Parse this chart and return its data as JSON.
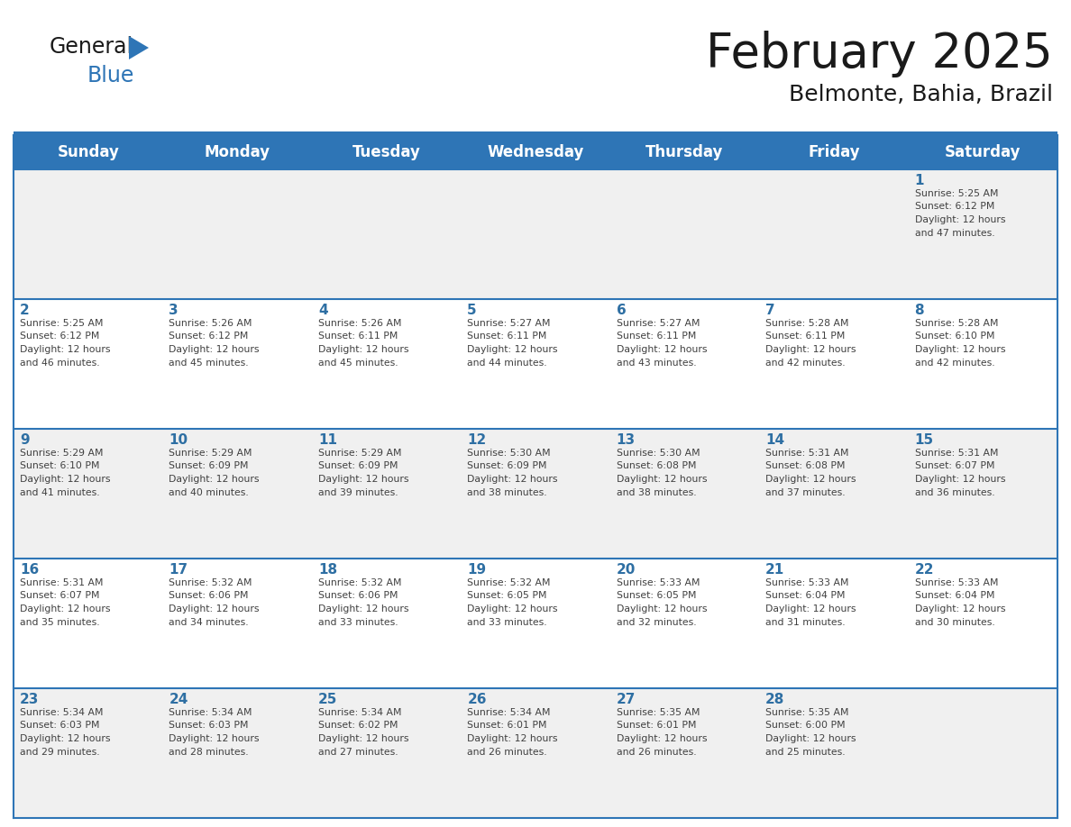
{
  "title": "February 2025",
  "subtitle": "Belmonte, Bahia, Brazil",
  "header_bg_color": "#2E75B6",
  "header_text_color": "#FFFFFF",
  "weekdays": [
    "Sunday",
    "Monday",
    "Tuesday",
    "Wednesday",
    "Thursday",
    "Friday",
    "Saturday"
  ],
  "bg_color": "#FFFFFF",
  "cell_alt_bg": "#F0F0F0",
  "separator_color": "#2E75B6",
  "day_number_color": "#2E6FA3",
  "info_text_color": "#404040",
  "title_color": "#1a1a1a",
  "calendar_data": [
    [
      {
        "day": null,
        "sunrise": null,
        "sunset": null,
        "daylight": null
      },
      {
        "day": null,
        "sunrise": null,
        "sunset": null,
        "daylight": null
      },
      {
        "day": null,
        "sunrise": null,
        "sunset": null,
        "daylight": null
      },
      {
        "day": null,
        "sunrise": null,
        "sunset": null,
        "daylight": null
      },
      {
        "day": null,
        "sunrise": null,
        "sunset": null,
        "daylight": null
      },
      {
        "day": null,
        "sunrise": null,
        "sunset": null,
        "daylight": null
      },
      {
        "day": 1,
        "sunrise": "5:25 AM",
        "sunset": "6:12 PM",
        "daylight": "12 hours and 47 minutes."
      }
    ],
    [
      {
        "day": 2,
        "sunrise": "5:25 AM",
        "sunset": "6:12 PM",
        "daylight": "12 hours and 46 minutes."
      },
      {
        "day": 3,
        "sunrise": "5:26 AM",
        "sunset": "6:12 PM",
        "daylight": "12 hours and 45 minutes."
      },
      {
        "day": 4,
        "sunrise": "5:26 AM",
        "sunset": "6:11 PM",
        "daylight": "12 hours and 45 minutes."
      },
      {
        "day": 5,
        "sunrise": "5:27 AM",
        "sunset": "6:11 PM",
        "daylight": "12 hours and 44 minutes."
      },
      {
        "day": 6,
        "sunrise": "5:27 AM",
        "sunset": "6:11 PM",
        "daylight": "12 hours and 43 minutes."
      },
      {
        "day": 7,
        "sunrise": "5:28 AM",
        "sunset": "6:11 PM",
        "daylight": "12 hours and 42 minutes."
      },
      {
        "day": 8,
        "sunrise": "5:28 AM",
        "sunset": "6:10 PM",
        "daylight": "12 hours and 42 minutes."
      }
    ],
    [
      {
        "day": 9,
        "sunrise": "5:29 AM",
        "sunset": "6:10 PM",
        "daylight": "12 hours and 41 minutes."
      },
      {
        "day": 10,
        "sunrise": "5:29 AM",
        "sunset": "6:09 PM",
        "daylight": "12 hours and 40 minutes."
      },
      {
        "day": 11,
        "sunrise": "5:29 AM",
        "sunset": "6:09 PM",
        "daylight": "12 hours and 39 minutes."
      },
      {
        "day": 12,
        "sunrise": "5:30 AM",
        "sunset": "6:09 PM",
        "daylight": "12 hours and 38 minutes."
      },
      {
        "day": 13,
        "sunrise": "5:30 AM",
        "sunset": "6:08 PM",
        "daylight": "12 hours and 38 minutes."
      },
      {
        "day": 14,
        "sunrise": "5:31 AM",
        "sunset": "6:08 PM",
        "daylight": "12 hours and 37 minutes."
      },
      {
        "day": 15,
        "sunrise": "5:31 AM",
        "sunset": "6:07 PM",
        "daylight": "12 hours and 36 minutes."
      }
    ],
    [
      {
        "day": 16,
        "sunrise": "5:31 AM",
        "sunset": "6:07 PM",
        "daylight": "12 hours and 35 minutes."
      },
      {
        "day": 17,
        "sunrise": "5:32 AM",
        "sunset": "6:06 PM",
        "daylight": "12 hours and 34 minutes."
      },
      {
        "day": 18,
        "sunrise": "5:32 AM",
        "sunset": "6:06 PM",
        "daylight": "12 hours and 33 minutes."
      },
      {
        "day": 19,
        "sunrise": "5:32 AM",
        "sunset": "6:05 PM",
        "daylight": "12 hours and 33 minutes."
      },
      {
        "day": 20,
        "sunrise": "5:33 AM",
        "sunset": "6:05 PM",
        "daylight": "12 hours and 32 minutes."
      },
      {
        "day": 21,
        "sunrise": "5:33 AM",
        "sunset": "6:04 PM",
        "daylight": "12 hours and 31 minutes."
      },
      {
        "day": 22,
        "sunrise": "5:33 AM",
        "sunset": "6:04 PM",
        "daylight": "12 hours and 30 minutes."
      }
    ],
    [
      {
        "day": 23,
        "sunrise": "5:34 AM",
        "sunset": "6:03 PM",
        "daylight": "12 hours and 29 minutes."
      },
      {
        "day": 24,
        "sunrise": "5:34 AM",
        "sunset": "6:03 PM",
        "daylight": "12 hours and 28 minutes."
      },
      {
        "day": 25,
        "sunrise": "5:34 AM",
        "sunset": "6:02 PM",
        "daylight": "12 hours and 27 minutes."
      },
      {
        "day": 26,
        "sunrise": "5:34 AM",
        "sunset": "6:01 PM",
        "daylight": "12 hours and 26 minutes."
      },
      {
        "day": 27,
        "sunrise": "5:35 AM",
        "sunset": "6:01 PM",
        "daylight": "12 hours and 26 minutes."
      },
      {
        "day": 28,
        "sunrise": "5:35 AM",
        "sunset": "6:00 PM",
        "daylight": "12 hours and 25 minutes."
      },
      {
        "day": null,
        "sunrise": null,
        "sunset": null,
        "daylight": null
      }
    ]
  ],
  "logo_general_color": "#1a1a1a",
  "logo_blue_color": "#2E75B6",
  "logo_triangle_color": "#2E75B6"
}
